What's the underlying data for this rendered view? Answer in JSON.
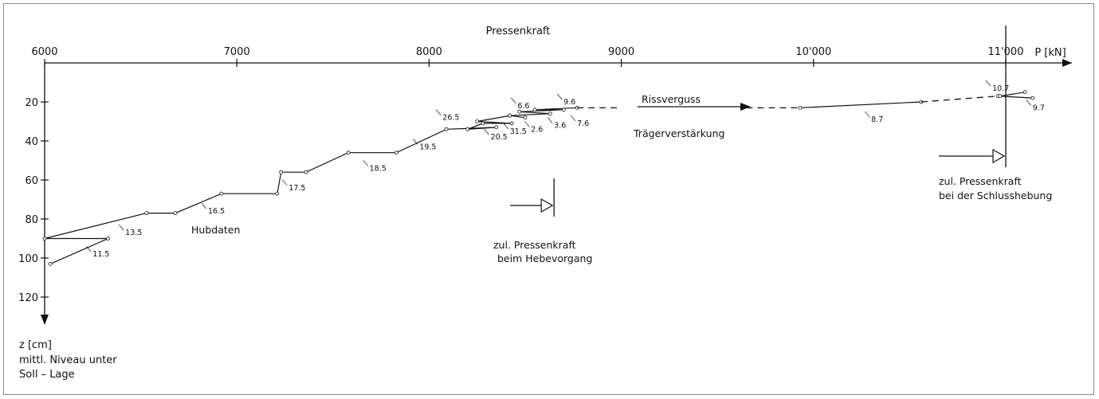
{
  "chart_data": {
    "type": "line",
    "title": "Pressenkraft",
    "xlabel": "P [kN]",
    "ylabel_lines": [
      "z [cm]",
      "mittl. Niveau unter",
      "Soll – Lage"
    ],
    "x_ticks": [
      6000,
      7000,
      8000,
      9000,
      10000,
      11000
    ],
    "x_tick_labels": [
      "6000",
      "7000",
      "8000",
      "9000",
      "10'000",
      "11'000"
    ],
    "y_ticks": [
      20,
      40,
      60,
      80,
      100,
      120
    ],
    "y_tick_labels": [
      "20",
      "40",
      "60",
      "80",
      "100",
      "120"
    ],
    "xlim": [
      6000,
      11400
    ],
    "ylim": [
      0,
      128
    ],
    "y_inverted": true,
    "grid": false,
    "main_path": [
      [
        6030,
        103
      ],
      [
        6330,
        90
      ],
      [
        6000,
        90
      ],
      [
        6530,
        77
      ],
      [
        6680,
        77
      ],
      [
        6920,
        67
      ],
      [
        7210,
        67
      ],
      [
        7230,
        56
      ],
      [
        7360,
        56
      ],
      [
        7580,
        46
      ],
      [
        7830,
        46
      ],
      [
        8090,
        34
      ],
      [
        8350,
        33
      ],
      [
        8200,
        34
      ],
      [
        8280,
        31
      ],
      [
        8430,
        31
      ],
      [
        8250,
        30
      ],
      [
        8420,
        27
      ],
      [
        8500,
        28
      ],
      [
        8420,
        27
      ],
      [
        8630,
        26
      ],
      [
        8470,
        25
      ],
      [
        8700,
        24
      ],
      [
        8550,
        24
      ],
      [
        8770,
        23
      ]
    ],
    "rissverguss_path": [
      [
        9930,
        23
      ],
      [
        10560,
        20
      ]
    ],
    "end_path": [
      [
        10960,
        17
      ],
      [
        11140,
        18
      ],
      [
        10970,
        17
      ],
      [
        11100,
        15
      ]
    ],
    "step_labels": [
      {
        "text": "11.5",
        "x": 6250,
        "y": 98
      },
      {
        "text": "13.5",
        "x": 6420,
        "y": 87
      },
      {
        "text": "16.5",
        "x": 6850,
        "y": 76
      },
      {
        "text": "17.5",
        "x": 7270,
        "y": 64
      },
      {
        "text": "18.5",
        "x": 7690,
        "y": 54
      },
      {
        "text": "19.5",
        "x": 7950,
        "y": 43
      },
      {
        "text": "20.5",
        "x": 8320,
        "y": 38
      },
      {
        "text": "31.5",
        "x": 8420,
        "y": 35
      },
      {
        "text": "2.6",
        "x": 8530,
        "y": 34
      },
      {
        "text": "3.6",
        "x": 8650,
        "y": 32
      },
      {
        "text": "7.6",
        "x": 8770,
        "y": 31
      },
      {
        "text": "26.5",
        "x": 8070,
        "y": 28
      },
      {
        "text": "6.6",
        "x": 8460,
        "y": 22
      },
      {
        "text": "9.6",
        "x": 8700,
        "y": 20
      },
      {
        "text": "8.7",
        "x": 10300,
        "y": 29
      },
      {
        "text": "10.7",
        "x": 10930,
        "y": 13
      },
      {
        "text": "9.7",
        "x": 11140,
        "y": 23
      }
    ],
    "annotations": {
      "rissverguss": "Rissverguss",
      "traegerverstaerkung": "Trägerverstärkung",
      "hubdaten": "Hubdaten",
      "zul_hebe_line1": "zul. Pressenkraft",
      "zul_hebe_line2": "beim Hebevorgang",
      "zul_schluss_line1": "zul. Pressenkraft",
      "zul_schluss_line2": "bei der Schlusshebung"
    },
    "limit_hebevorgang": 8650,
    "limit_schlusshebung": 11000
  }
}
